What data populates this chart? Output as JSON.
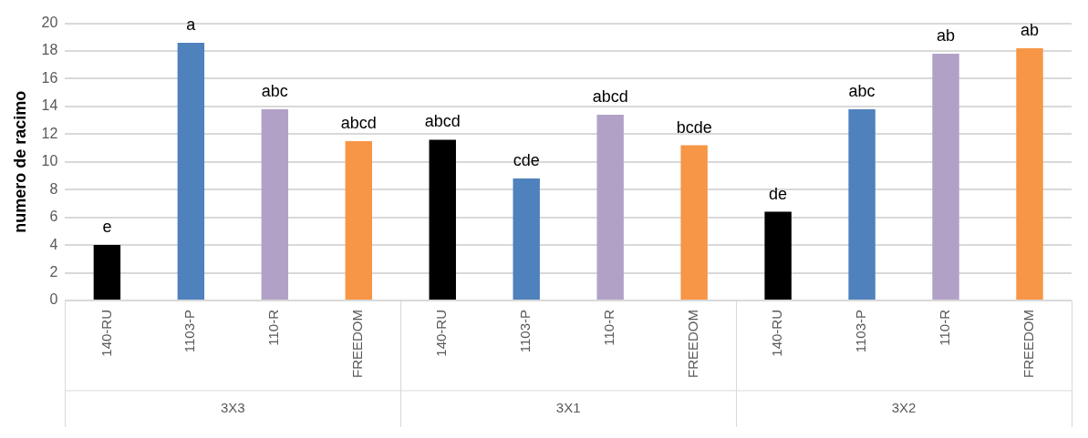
{
  "chart_data": {
    "type": "bar",
    "ylabel": "numero de racimo",
    "categories": [
      "140-RU",
      "1103-P",
      "110-R",
      "FREEDOM",
      "140-RU",
      "1103-P",
      "110-R",
      "FREEDOM",
      "140-RU",
      "1103-P",
      "110-R",
      "FREEDOM"
    ],
    "values": [
      4.0,
      18.6,
      13.8,
      11.5,
      11.6,
      8.8,
      13.4,
      11.2,
      6.4,
      13.8,
      17.8,
      18.2
    ],
    "colors": [
      "#000000",
      "#4f81bd",
      "#b2a1c7",
      "#f79646",
      "#000000",
      "#4f81bd",
      "#b2a1c7",
      "#f79646",
      "#000000",
      "#4f81bd",
      "#b2a1c7",
      "#f79646"
    ],
    "value_labels": [
      "e",
      "a",
      "abc",
      "abcd",
      "abcd",
      "cde",
      "abcd",
      "bcde",
      "de",
      "abc",
      "ab",
      "ab"
    ],
    "annotations": [
      "3X3",
      "3X1",
      "3X2"
    ],
    "ylim": [
      0,
      20
    ],
    "yticks": [
      0,
      2,
      4,
      6,
      8,
      10,
      12,
      14,
      16,
      18,
      20
    ],
    "grid": "y",
    "legend": false
  }
}
